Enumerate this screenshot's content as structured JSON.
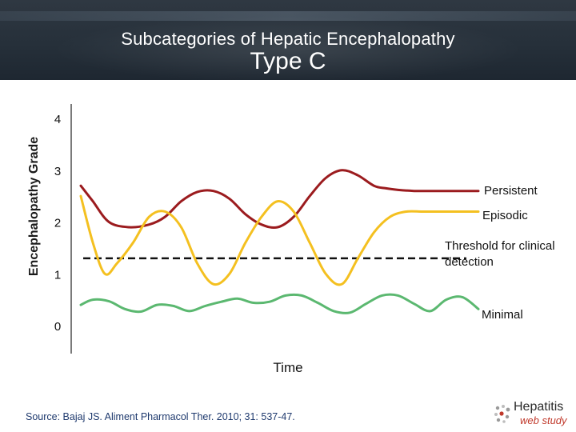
{
  "header": {
    "title": "Subcategories of Hepatic Encephalopathy",
    "subtitle": "Type C"
  },
  "chart_data": {
    "type": "line",
    "title": "Subcategories of Hepatic Encephalopathy",
    "subtitle": "Type C",
    "xlabel": "Time",
    "ylabel": "Encephalopathy Grade",
    "ylim": [
      0,
      4
    ],
    "y_ticks": [
      "0",
      "1",
      "2",
      "3",
      "4"
    ],
    "x_ticks": [],
    "grid": false,
    "threshold": {
      "label": "Threshold for clinical detection",
      "y": 1.3,
      "x_end": 97
    },
    "series": [
      {
        "name": "Persistent",
        "color": "#9b1b1e",
        "x": [
          1,
          4,
          8,
          13,
          18,
          22,
          26,
          30,
          34,
          38,
          42,
          46,
          50,
          54,
          58,
          62,
          66,
          70,
          74,
          77,
          80,
          84,
          88,
          92,
          96,
          100
        ],
        "y": [
          2.7,
          2.4,
          2.0,
          1.9,
          1.95,
          2.1,
          2.4,
          2.58,
          2.6,
          2.45,
          2.15,
          1.95,
          1.9,
          2.1,
          2.5,
          2.85,
          3.0,
          2.9,
          2.7,
          2.65,
          2.62,
          2.6,
          2.6,
          2.6,
          2.6,
          2.6
        ]
      },
      {
        "name": "Episodic",
        "color": "#f4c020",
        "x": [
          1,
          4,
          7,
          10,
          14,
          18,
          22,
          26,
          30,
          34,
          38,
          42,
          46,
          50,
          54,
          58,
          62,
          66,
          70,
          74,
          78,
          82,
          86,
          90,
          94,
          98,
          100
        ],
        "y": [
          2.5,
          1.6,
          1.0,
          1.2,
          1.6,
          2.1,
          2.2,
          1.9,
          1.2,
          0.8,
          1.0,
          1.6,
          2.1,
          2.4,
          2.2,
          1.6,
          1.0,
          0.8,
          1.3,
          1.8,
          2.1,
          2.2,
          2.2,
          2.2,
          2.2,
          2.2,
          2.2
        ]
      },
      {
        "name": "Minimal",
        "color": "#5bb870",
        "x": [
          1,
          4,
          8,
          12,
          16,
          20,
          24,
          28,
          32,
          36,
          40,
          44,
          48,
          52,
          56,
          60,
          64,
          68,
          72,
          76,
          80,
          84,
          88,
          92,
          96,
          100
        ],
        "y": [
          0.4,
          0.5,
          0.47,
          0.32,
          0.27,
          0.4,
          0.38,
          0.28,
          0.38,
          0.46,
          0.52,
          0.44,
          0.46,
          0.58,
          0.58,
          0.44,
          0.28,
          0.25,
          0.42,
          0.58,
          0.58,
          0.42,
          0.28,
          0.5,
          0.55,
          0.32
        ]
      }
    ],
    "annotations": [
      "Persistent",
      "Episodic",
      "Threshold for clinical detection",
      "Minimal"
    ]
  },
  "footer": {
    "source": "Source: Bajaj JS. Aliment Pharmacol Ther. 2010; 31: 537-47.",
    "logo_brand": "Hepatitis",
    "logo_tag": "web study"
  }
}
